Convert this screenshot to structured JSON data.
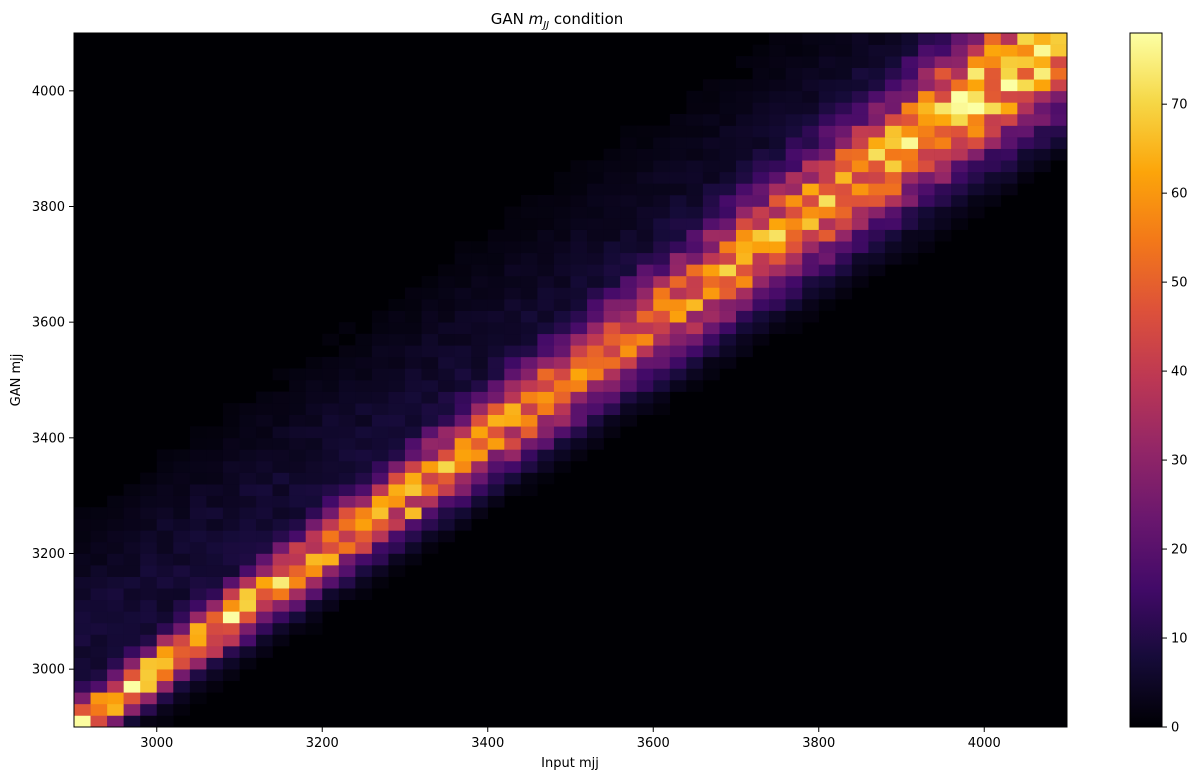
{
  "chart_data": {
    "type": "heatmap",
    "title": "GAN ",
    "title_math": "m",
    "title_sub": "JJ",
    "title_suffix": " condition",
    "xlabel": "Input mjj",
    "ylabel": "GAN mjj",
    "xlim": [
      2900,
      4100
    ],
    "ylim": [
      2900,
      4100
    ],
    "x_ticks": [
      3000,
      3200,
      3400,
      3600,
      3800,
      4000
    ],
    "y_ticks": [
      3000,
      3200,
      3400,
      3600,
      3800,
      4000
    ],
    "x_tick_labels": [
      "3000",
      "3200",
      "3400",
      "3600",
      "3800",
      "4000"
    ],
    "y_tick_labels": [
      "3000",
      "3200",
      "3400",
      "3600",
      "3800",
      "4000"
    ],
    "bins": 60,
    "bin_width": 20,
    "colormap": "inferno",
    "colorbar": {
      "min": 0,
      "max": 78,
      "ticks": [
        0,
        10,
        20,
        30,
        40,
        50,
        60,
        70
      ],
      "tick_labels": [
        "0",
        "10",
        "20",
        "30",
        "40",
        "50",
        "60",
        "70"
      ]
    },
    "density_trend": {
      "description_points_input_vs_peak_count": [
        [
          2950,
          78
        ],
        [
          3050,
          65
        ],
        [
          3200,
          55
        ],
        [
          3300,
          60
        ],
        [
          3500,
          45
        ],
        [
          3700,
          62
        ],
        [
          3830,
          62
        ],
        [
          3950,
          55
        ],
        [
          4080,
          45
        ]
      ],
      "ridge": "counts concentrated along diagonal GAN mjj = Input mjj, widening at higher mass"
    },
    "peak_cells": [
      {
        "x": 2960,
        "y": 2910,
        "count": 78
      },
      {
        "x": 3020,
        "y": 2990,
        "count": 76
      },
      {
        "x": 3060,
        "y": 3010,
        "count": 74
      },
      {
        "x": 3300,
        "y": 3260,
        "count": 66
      },
      {
        "x": 3840,
        "y": 3830,
        "count": 64
      },
      {
        "x": 3700,
        "y": 3690,
        "count": 62
      }
    ]
  }
}
